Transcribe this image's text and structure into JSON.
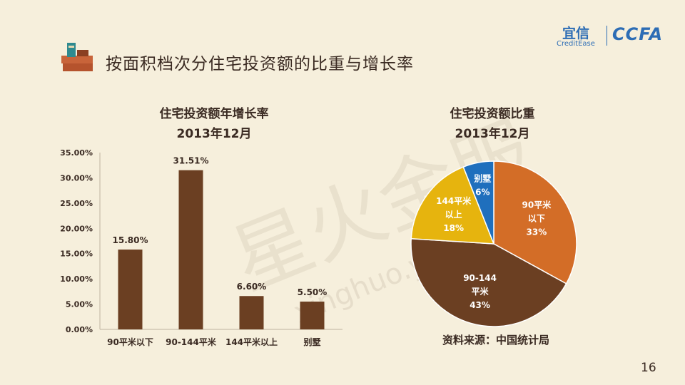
{
  "slide": {
    "title": "按面积档次分住宅投资额的比重与增长率",
    "page_number": "16"
  },
  "logo": {
    "cn": "宜信",
    "en": "CreditEase",
    "ccfa": "CCFA"
  },
  "watermark": {
    "cn": "星火金服",
    "url": "xinghuo.yixin.com"
  },
  "colors": {
    "bar": "#6b3f22",
    "pie_90": "#d36d27",
    "pie_90_144": "#6b3f22",
    "pie_144": "#e6b40e",
    "pie_villa": "#1f6fbd"
  },
  "chart_data": [
    {
      "type": "bar",
      "title": "住宅投资额年增长率",
      "subtitle": "2013年12月",
      "categories": [
        "90平米以下",
        "90-144平米",
        "144平米以上",
        "别墅"
      ],
      "values": [
        15.8,
        31.51,
        6.6,
        5.5
      ],
      "value_labels": [
        "15.80%",
        "31.51%",
        "6.60%",
        "5.50%"
      ],
      "ylim": [
        0,
        35
      ],
      "yticks": [
        "0.00%",
        "5.00%",
        "10.00%",
        "15.00%",
        "20.00%",
        "25.00%",
        "30.00%",
        "35.00%"
      ],
      "grid": false
    },
    {
      "type": "pie",
      "title": "住宅投资额比重",
      "subtitle": "2013年12月",
      "slices": [
        {
          "label": "90平米\n以下",
          "value": 33,
          "pct_label": "33%",
          "color_key": "pie_90"
        },
        {
          "label": "90-144\n平米",
          "value": 43,
          "pct_label": "43%",
          "color_key": "pie_90_144"
        },
        {
          "label": "144平米\n以上",
          "value": 18,
          "pct_label": "18%",
          "color_key": "pie_144"
        },
        {
          "label": "别墅",
          "value": 6,
          "pct_label": "6%",
          "color_key": "pie_villa"
        }
      ],
      "source": "资料来源：中国统计局"
    }
  ]
}
